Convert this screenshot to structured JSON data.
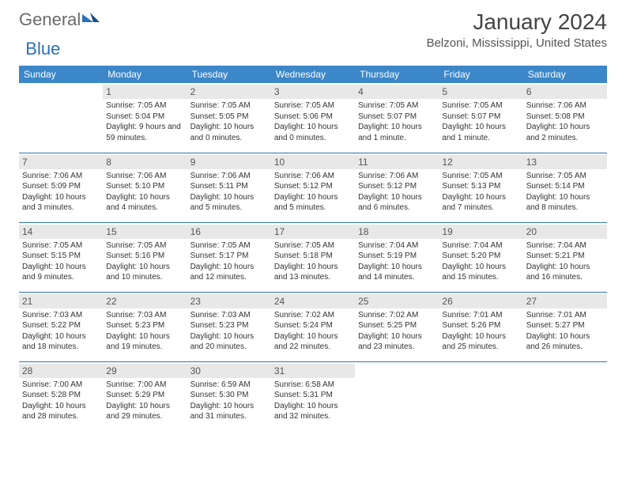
{
  "logo": {
    "general": "General",
    "blue": "Blue"
  },
  "title": "January 2024",
  "location": "Belzoni, Mississippi, United States",
  "colors": {
    "header_bg": "#3b87c8",
    "header_text": "#ffffff",
    "daynum_bg": "#e8e8e8",
    "rule": "#2a71b8",
    "logo_gray": "#6b6b6b",
    "logo_blue": "#2a71b8"
  },
  "weekdays": [
    "Sunday",
    "Monday",
    "Tuesday",
    "Wednesday",
    "Thursday",
    "Friday",
    "Saturday"
  ],
  "weeks": [
    [
      null,
      {
        "n": "1",
        "sr": "7:05 AM",
        "ss": "5:04 PM",
        "dl": "9 hours and 59 minutes."
      },
      {
        "n": "2",
        "sr": "7:05 AM",
        "ss": "5:05 PM",
        "dl": "10 hours and 0 minutes."
      },
      {
        "n": "3",
        "sr": "7:05 AM",
        "ss": "5:06 PM",
        "dl": "10 hours and 0 minutes."
      },
      {
        "n": "4",
        "sr": "7:05 AM",
        "ss": "5:07 PM",
        "dl": "10 hours and 1 minute."
      },
      {
        "n": "5",
        "sr": "7:05 AM",
        "ss": "5:07 PM",
        "dl": "10 hours and 1 minute."
      },
      {
        "n": "6",
        "sr": "7:06 AM",
        "ss": "5:08 PM",
        "dl": "10 hours and 2 minutes."
      }
    ],
    [
      {
        "n": "7",
        "sr": "7:06 AM",
        "ss": "5:09 PM",
        "dl": "10 hours and 3 minutes."
      },
      {
        "n": "8",
        "sr": "7:06 AM",
        "ss": "5:10 PM",
        "dl": "10 hours and 4 minutes."
      },
      {
        "n": "9",
        "sr": "7:06 AM",
        "ss": "5:11 PM",
        "dl": "10 hours and 5 minutes."
      },
      {
        "n": "10",
        "sr": "7:06 AM",
        "ss": "5:12 PM",
        "dl": "10 hours and 5 minutes."
      },
      {
        "n": "11",
        "sr": "7:06 AM",
        "ss": "5:12 PM",
        "dl": "10 hours and 6 minutes."
      },
      {
        "n": "12",
        "sr": "7:05 AM",
        "ss": "5:13 PM",
        "dl": "10 hours and 7 minutes."
      },
      {
        "n": "13",
        "sr": "7:05 AM",
        "ss": "5:14 PM",
        "dl": "10 hours and 8 minutes."
      }
    ],
    [
      {
        "n": "14",
        "sr": "7:05 AM",
        "ss": "5:15 PM",
        "dl": "10 hours and 9 minutes."
      },
      {
        "n": "15",
        "sr": "7:05 AM",
        "ss": "5:16 PM",
        "dl": "10 hours and 10 minutes."
      },
      {
        "n": "16",
        "sr": "7:05 AM",
        "ss": "5:17 PM",
        "dl": "10 hours and 12 minutes."
      },
      {
        "n": "17",
        "sr": "7:05 AM",
        "ss": "5:18 PM",
        "dl": "10 hours and 13 minutes."
      },
      {
        "n": "18",
        "sr": "7:04 AM",
        "ss": "5:19 PM",
        "dl": "10 hours and 14 minutes."
      },
      {
        "n": "19",
        "sr": "7:04 AM",
        "ss": "5:20 PM",
        "dl": "10 hours and 15 minutes."
      },
      {
        "n": "20",
        "sr": "7:04 AM",
        "ss": "5:21 PM",
        "dl": "10 hours and 16 minutes."
      }
    ],
    [
      {
        "n": "21",
        "sr": "7:03 AM",
        "ss": "5:22 PM",
        "dl": "10 hours and 18 minutes."
      },
      {
        "n": "22",
        "sr": "7:03 AM",
        "ss": "5:23 PM",
        "dl": "10 hours and 19 minutes."
      },
      {
        "n": "23",
        "sr": "7:03 AM",
        "ss": "5:23 PM",
        "dl": "10 hours and 20 minutes."
      },
      {
        "n": "24",
        "sr": "7:02 AM",
        "ss": "5:24 PM",
        "dl": "10 hours and 22 minutes."
      },
      {
        "n": "25",
        "sr": "7:02 AM",
        "ss": "5:25 PM",
        "dl": "10 hours and 23 minutes."
      },
      {
        "n": "26",
        "sr": "7:01 AM",
        "ss": "5:26 PM",
        "dl": "10 hours and 25 minutes."
      },
      {
        "n": "27",
        "sr": "7:01 AM",
        "ss": "5:27 PM",
        "dl": "10 hours and 26 minutes."
      }
    ],
    [
      {
        "n": "28",
        "sr": "7:00 AM",
        "ss": "5:28 PM",
        "dl": "10 hours and 28 minutes."
      },
      {
        "n": "29",
        "sr": "7:00 AM",
        "ss": "5:29 PM",
        "dl": "10 hours and 29 minutes."
      },
      {
        "n": "30",
        "sr": "6:59 AM",
        "ss": "5:30 PM",
        "dl": "10 hours and 31 minutes."
      },
      {
        "n": "31",
        "sr": "6:58 AM",
        "ss": "5:31 PM",
        "dl": "10 hours and 32 minutes."
      },
      null,
      null,
      null
    ]
  ],
  "labels": {
    "sunrise": "Sunrise:",
    "sunset": "Sunset:",
    "daylight": "Daylight:"
  }
}
